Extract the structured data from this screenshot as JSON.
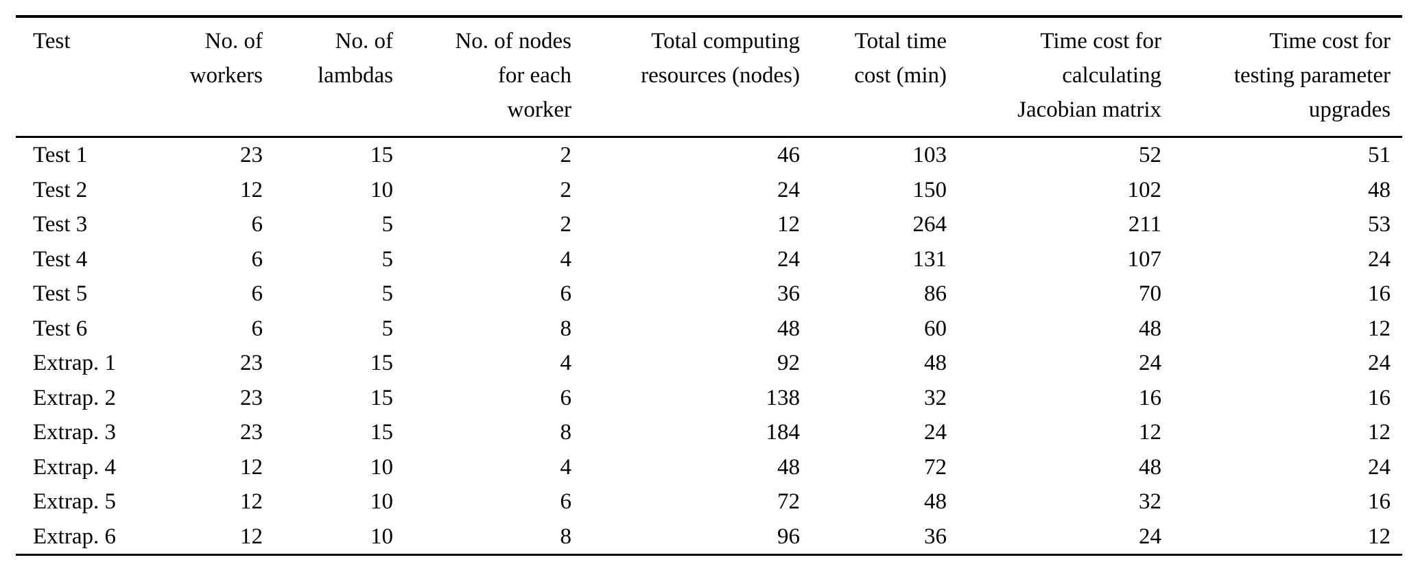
{
  "colors": {
    "background": "#ffffff",
    "text": "#000000",
    "rule": "#000000"
  },
  "table": {
    "headers": [
      "Test",
      "No. of\nworkers",
      "No. of\nlambdas",
      "No. of nodes\nfor each\nworker",
      "Total computing\nresources (nodes)",
      "Total time\ncost (min)",
      "Time cost for\ncalculating\nJacobian matrix",
      "Time cost for\ntesting parameter\nupgrades"
    ],
    "rows": [
      [
        "Test 1",
        "23",
        "15",
        "2",
        "46",
        "103",
        "52",
        "51"
      ],
      [
        "Test 2",
        "12",
        "10",
        "2",
        "24",
        "150",
        "102",
        "48"
      ],
      [
        "Test 3",
        "6",
        "5",
        "2",
        "12",
        "264",
        "211",
        "53"
      ],
      [
        "Test 4",
        "6",
        "5",
        "4",
        "24",
        "131",
        "107",
        "24"
      ],
      [
        "Test 5",
        "6",
        "5",
        "6",
        "36",
        "86",
        "70",
        "16"
      ],
      [
        "Test 6",
        "6",
        "5",
        "8",
        "48",
        "60",
        "48",
        "12"
      ],
      [
        "Extrap. 1",
        "23",
        "15",
        "4",
        "92",
        "48",
        "24",
        "24"
      ],
      [
        "Extrap. 2",
        "23",
        "15",
        "6",
        "138",
        "32",
        "16",
        "16"
      ],
      [
        "Extrap. 3",
        "23",
        "15",
        "8",
        "184",
        "24",
        "12",
        "12"
      ],
      [
        "Extrap. 4",
        "12",
        "10",
        "4",
        "48",
        "72",
        "48",
        "24"
      ],
      [
        "Extrap. 5",
        "12",
        "10",
        "6",
        "72",
        "48",
        "32",
        "16"
      ],
      [
        "Extrap. 6",
        "12",
        "10",
        "8",
        "96",
        "36",
        "24",
        "12"
      ]
    ]
  }
}
